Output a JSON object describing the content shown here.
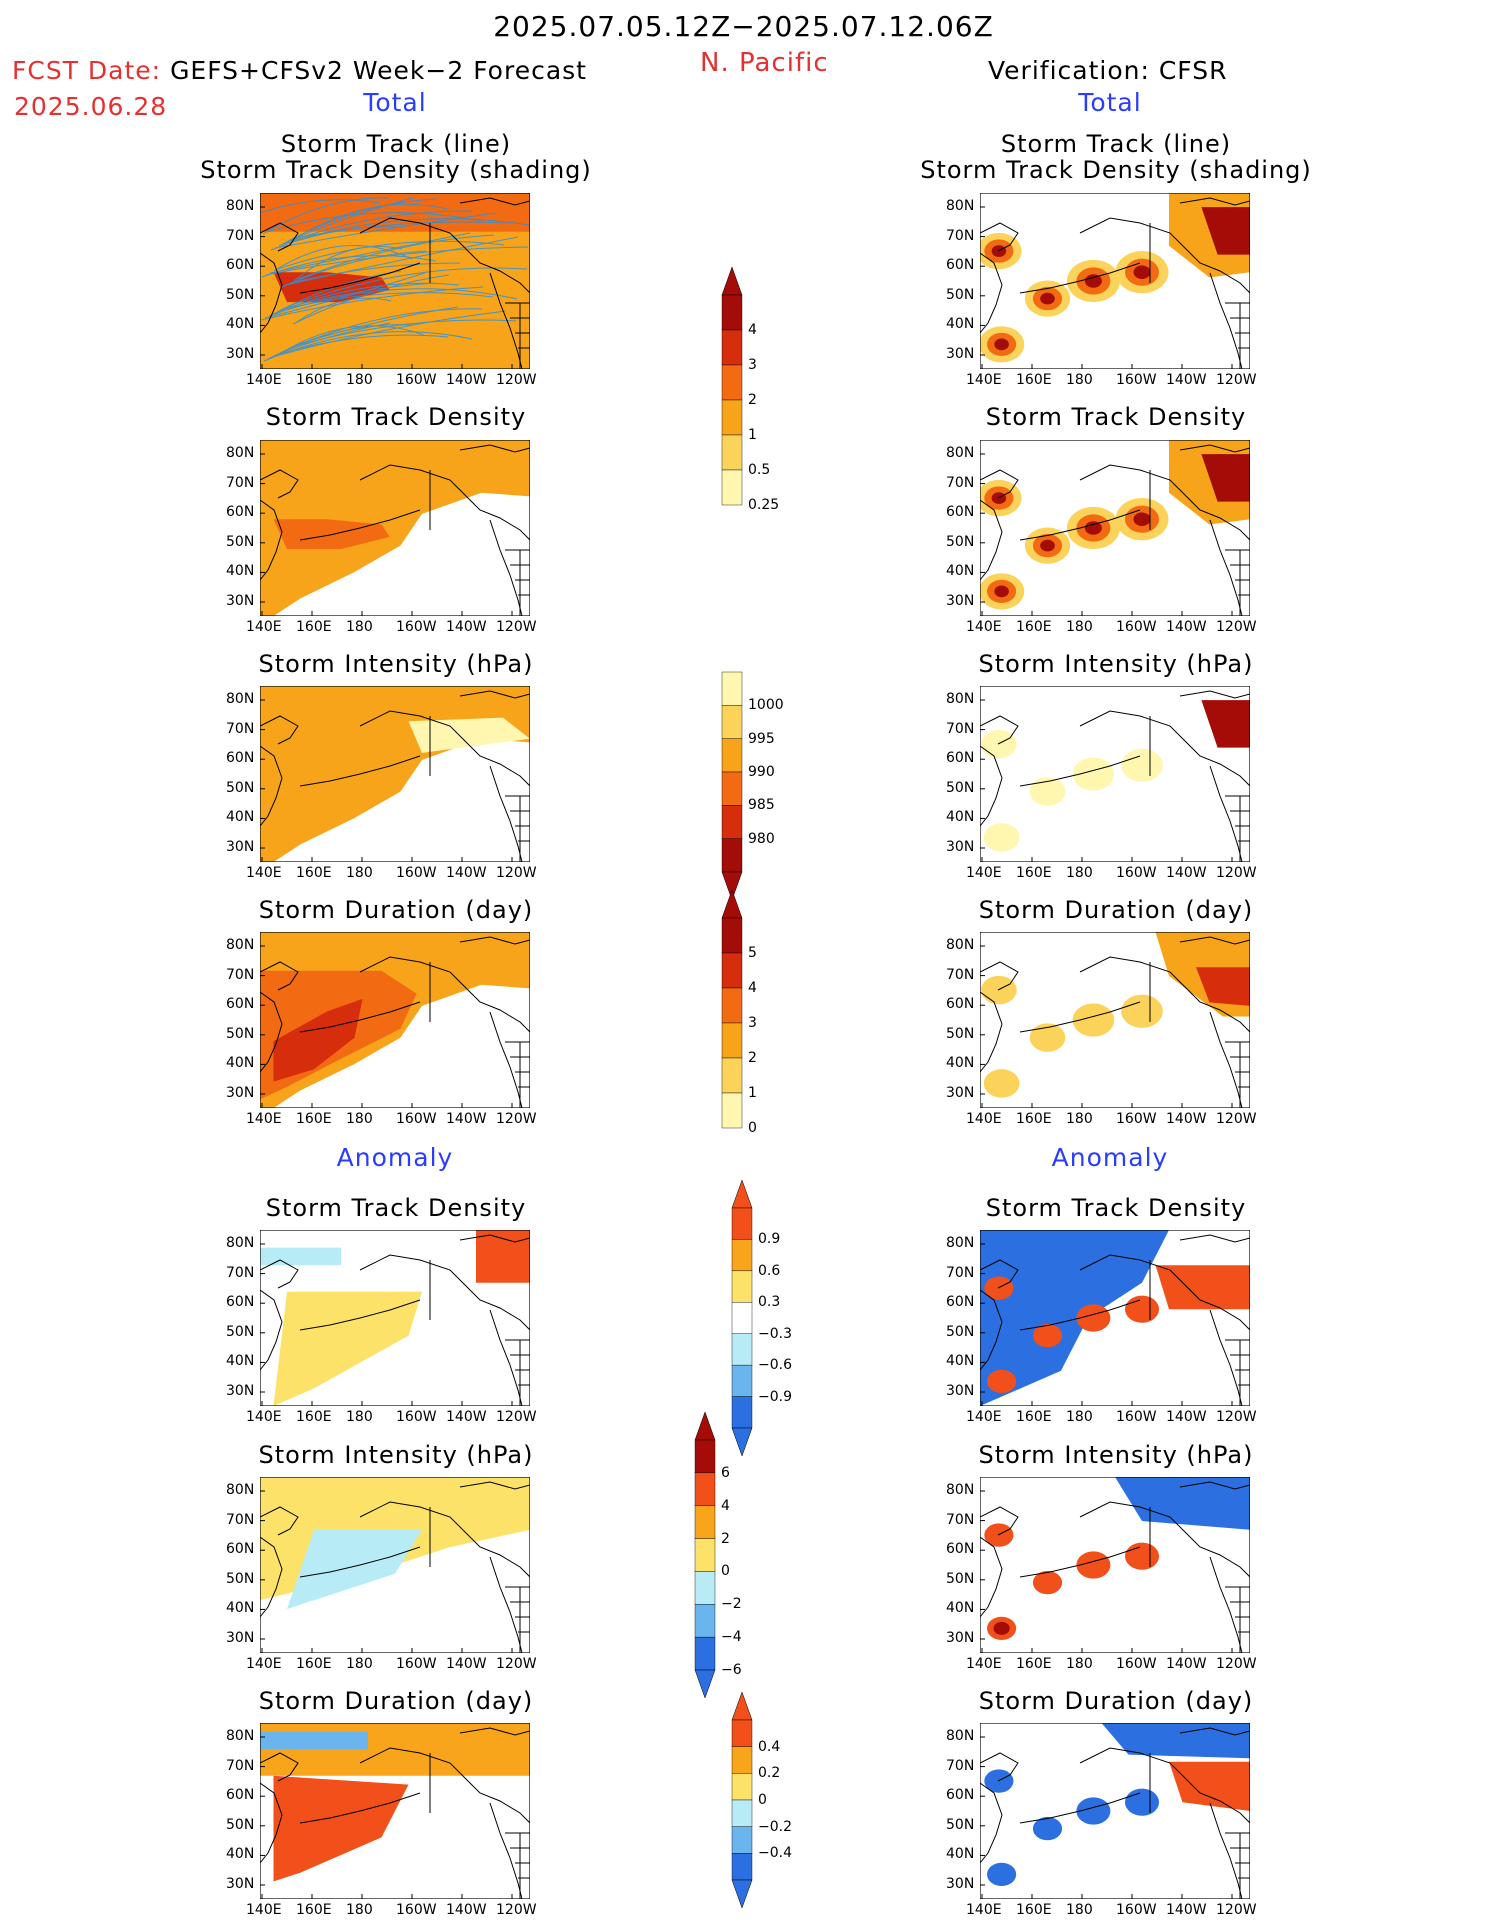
{
  "header": {
    "date_range": "2025.07.05.12Z−2025.07.12.06Z",
    "region": "N. Pacific",
    "forecast_label_prefix": "FCST Date:",
    "forecast_label_model": "GEFS+CFSv2 Week−2 Forecast",
    "forecast_date": "2025.06.28",
    "verification_label": "Verification: CFSR"
  },
  "sections": {
    "total": "Total",
    "anomaly": "Anomaly"
  },
  "panel_titles": {
    "track_line": "Storm Track (line)",
    "track_density_shading": "Storm Track Density (shading)",
    "track_density": "Storm Track Density",
    "intensity": "Storm Intensity (hPa)",
    "duration": "Storm Duration (day)"
  },
  "axes": {
    "lon_ticks": [
      "140E",
      "160E",
      "180",
      "160W",
      "140W",
      "120W"
    ],
    "lat_ticks": [
      "80N",
      "70N",
      "60N",
      "50N",
      "40N",
      "30N"
    ]
  },
  "colorbars": {
    "density": [
      "4",
      "3",
      "2",
      "1",
      "0.5",
      "0.25"
    ],
    "intensity": [
      "1000",
      "995",
      "990",
      "985",
      "980"
    ],
    "duration": [
      "5",
      "4",
      "3",
      "2",
      "1",
      "0"
    ],
    "density_anom": [
      "0.9",
      "0.6",
      "0.3",
      "−0.3",
      "−0.6",
      "−0.9"
    ],
    "intensity_anom": [
      "6",
      "4",
      "2",
      "0",
      "−2",
      "−4",
      "−6"
    ],
    "duration_anom": [
      "0.4",
      "0.2",
      "0",
      "−0.2",
      "−0.4"
    ]
  },
  "colors": {
    "warm": [
      "#fff7b0",
      "#fbd35a",
      "#f7a41a",
      "#f26b12",
      "#d62d0c",
      "#a40c08"
    ],
    "anom_pos": [
      "#fde26a",
      "#f9a51c",
      "#f2501a"
    ],
    "anom_neg": [
      "#b7ecf7",
      "#6ab5ee",
      "#2c6fe0"
    ],
    "track_line": "#2f8fd8",
    "title_blue": "#2a3cff",
    "title_red": "#e53030"
  },
  "chart_data": [
    {
      "type": "heatmap",
      "panel": "forecast-track-density-with-tracks",
      "title": "Storm Track (line) / Storm Track Density (shading)",
      "overlay": "storm track lines",
      "lon_range": [
        "140E",
        "110W"
      ],
      "lat_range": [
        "25N",
        "85N"
      ]
    },
    {
      "type": "heatmap",
      "panel": "verification-track-density-with-tracks",
      "title": "Storm Track (line) / Storm Track Density (shading)",
      "lon_range": [
        "140E",
        "110W"
      ],
      "lat_range": [
        "25N",
        "85N"
      ]
    },
    {
      "type": "heatmap",
      "panel": "forecast-track-density",
      "title": "Storm Track Density",
      "levels": [
        0.25,
        0.5,
        1,
        2,
        3,
        4
      ]
    },
    {
      "type": "heatmap",
      "panel": "verification-track-density",
      "title": "Storm Track Density",
      "levels": [
        0.25,
        0.5,
        1,
        2,
        3,
        4
      ]
    },
    {
      "type": "heatmap",
      "panel": "forecast-intensity",
      "title": "Storm Intensity (hPa)",
      "levels": [
        1000,
        995,
        990,
        985,
        980
      ]
    },
    {
      "type": "heatmap",
      "panel": "verification-intensity",
      "title": "Storm Intensity (hPa)",
      "levels": [
        1000,
        995,
        990,
        985,
        980
      ]
    },
    {
      "type": "heatmap",
      "panel": "forecast-duration",
      "title": "Storm Duration (day)",
      "levels": [
        0,
        1,
        2,
        3,
        4,
        5
      ]
    },
    {
      "type": "heatmap",
      "panel": "verification-duration",
      "title": "Storm Duration (day)",
      "levels": [
        0,
        1,
        2,
        3,
        4,
        5
      ]
    },
    {
      "type": "heatmap",
      "panel": "forecast-density-anomaly",
      "title": "Storm Track Density",
      "levels": [
        -0.9,
        -0.6,
        -0.3,
        0.3,
        0.6,
        0.9
      ]
    },
    {
      "type": "heatmap",
      "panel": "verification-density-anomaly",
      "title": "Storm Track Density",
      "levels": [
        -0.9,
        -0.6,
        -0.3,
        0.3,
        0.6,
        0.9
      ]
    },
    {
      "type": "heatmap",
      "panel": "forecast-intensity-anomaly",
      "title": "Storm Intensity (hPa)",
      "levels": [
        -6,
        -4,
        -2,
        0,
        2,
        4,
        6
      ]
    },
    {
      "type": "heatmap",
      "panel": "verification-intensity-anomaly",
      "title": "Storm Intensity (hPa)",
      "levels": [
        -6,
        -4,
        -2,
        0,
        2,
        4,
        6
      ]
    },
    {
      "type": "heatmap",
      "panel": "forecast-duration-anomaly",
      "title": "Storm Duration (day)",
      "levels": [
        -0.4,
        -0.2,
        0,
        0.2,
        0.4
      ]
    },
    {
      "type": "heatmap",
      "panel": "verification-duration-anomaly",
      "title": "Storm Duration (day)",
      "levels": [
        -0.4,
        -0.2,
        0,
        0.2,
        0.4
      ]
    }
  ]
}
